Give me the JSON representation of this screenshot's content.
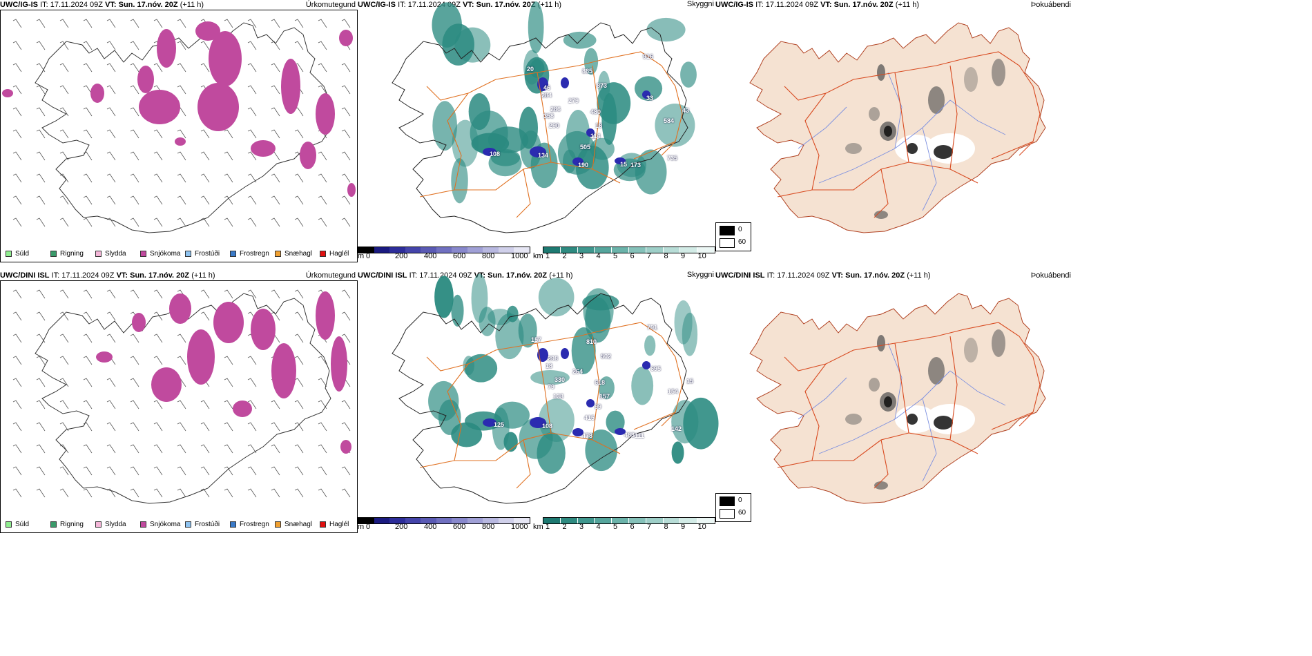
{
  "rows": [
    {
      "model": "UWC/IG-IS",
      "it_label": "IT:",
      "it_value": "17.11.2024 09Z",
      "vt_label": "VT:",
      "vt_value": "Sun. 17.nóv. 20Z",
      "lead": "(+11 h)",
      "visibility_values": [
        "916",
        "885",
        "873",
        "46",
        "284",
        "279",
        "286",
        "33",
        "480",
        "584",
        "358",
        "290",
        "18",
        "114",
        "505",
        "108",
        "134",
        "190",
        "15",
        "173",
        "735",
        "20",
        "43"
      ]
    },
    {
      "model": "UWC/DINI ISL",
      "it_label": "IT:",
      "it_value": "17.11.2024 09Z",
      "vt_label": "VT:",
      "vt_value": "Sun. 17.nóv. 20Z",
      "lead": "(+11 h)",
      "visibility_values": [
        "791",
        "810",
        "502",
        "298",
        "18",
        "264",
        "330",
        "695",
        "618",
        "154",
        "79",
        "138",
        "157",
        "99",
        "415",
        "125",
        "108",
        "478",
        "463",
        "111",
        "142",
        "157",
        "15"
      ]
    }
  ],
  "panel_titles": {
    "precip": "Úrkomutegund",
    "visibility": "Skyggni",
    "cloud": "Þokuábendi"
  },
  "precip_legend": [
    {
      "label": "Súld",
      "color": "#90ee90"
    },
    {
      "label": "Rigning",
      "color": "#3a9a6a"
    },
    {
      "label": "Slydda",
      "color": "#f4b6d8"
    },
    {
      "label": "Snjókoma",
      "color": "#c04a9e"
    },
    {
      "label": "Frostúði",
      "color": "#8ec3f0"
    },
    {
      "label": "Frostregn",
      "color": "#3a7ac8"
    },
    {
      "label": "Snæhagl",
      "color": "#f0a030"
    },
    {
      "label": "Haglél",
      "color": "#e01010"
    }
  ],
  "height_scale": {
    "unit": "m",
    "ticks": [
      "0",
      "200",
      "400",
      "600",
      "800",
      "1000"
    ],
    "colors": [
      "#000000",
      "#1a1a80",
      "#2d2d9a",
      "#4444aa",
      "#5a5ab4",
      "#7070c0",
      "#8888cc",
      "#a0a0d6",
      "#b8b8e0",
      "#d0d0ea",
      "#e6e6f4"
    ]
  },
  "visibility_scale": {
    "unit": "km",
    "ticks": [
      "1",
      "2",
      "3",
      "4",
      "5",
      "6",
      "7",
      "8",
      "9",
      "10"
    ],
    "colors": [
      "#1e7a72",
      "#2e8a80",
      "#3f978e",
      "#55a59c",
      "#6bb3aa",
      "#85c1b9",
      "#9ecfc8",
      "#b8ddd7",
      "#d2ebe6",
      "#ecf7f5"
    ]
  },
  "cloud_scale": {
    "items": [
      {
        "label": "0",
        "color": "#000000"
      },
      {
        "label": "60",
        "color": "#ffffff"
      }
    ]
  },
  "colors": {
    "snow": "#c04a9e",
    "vis_teal": "#2a8a80",
    "vis_blue": "#2b2bb0",
    "roads": "#e07020",
    "land": "#f5e2d2",
    "rivers": "#7b8fe0"
  }
}
